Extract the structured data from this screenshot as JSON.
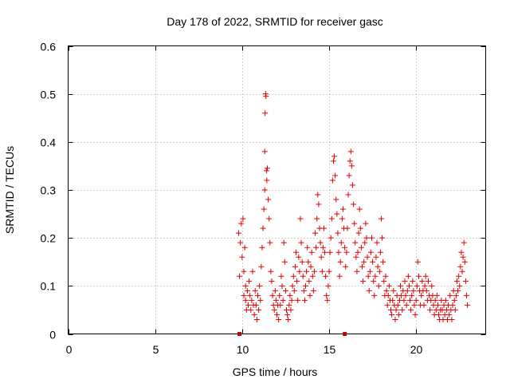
{
  "chart_data": {
    "type": "scatter",
    "title": "Day 178 of 2022, SRMTID for receiver gasc",
    "xlabel": "GPS time / hours",
    "ylabel": "SRMTID / TECUs",
    "xlim": [
      0,
      24
    ],
    "ylim": [
      0,
      0.6
    ],
    "xticks": [
      0,
      5,
      10,
      15,
      20
    ],
    "yticks": [
      0,
      0.1,
      0.2,
      0.3,
      0.4,
      0.5,
      0.6
    ],
    "xtick_labels": [
      "0",
      "5",
      "10",
      "15",
      "20"
    ],
    "ytick_labels": [
      "0",
      "0.1",
      "0.2",
      "0.3",
      "0.4",
      "0.5",
      "0.6"
    ],
    "grid": true,
    "marker": "+",
    "color": "#e00000",
    "series": [
      {
        "name": "SRMTID",
        "points": [
          [
            9.8,
            0.21
          ],
          [
            9.85,
            0.12
          ],
          [
            9.9,
            0.19
          ],
          [
            9.95,
            0.23
          ],
          [
            10.0,
            0.16
          ],
          [
            10.05,
            0.24
          ],
          [
            10.1,
            0.13
          ],
          [
            10.1,
            0.08
          ],
          [
            10.15,
            0.18
          ],
          [
            10.2,
            0.07
          ],
          [
            10.2,
            0.1
          ],
          [
            10.25,
            0.05
          ],
          [
            10.3,
            0.09
          ],
          [
            10.35,
            0.06
          ],
          [
            10.4,
            0.11
          ],
          [
            10.45,
            0.08
          ],
          [
            10.5,
            0.05
          ],
          [
            10.55,
            0.07
          ],
          [
            10.6,
            0.13
          ],
          [
            10.65,
            0.06
          ],
          [
            10.7,
            0.04
          ],
          [
            10.75,
            0.09
          ],
          [
            10.8,
            0.06
          ],
          [
            10.85,
            0.03
          ],
          [
            10.9,
            0.08
          ],
          [
            10.95,
            0.05
          ],
          [
            11.0,
            0.1
          ],
          [
            11.05,
            0.07
          ],
          [
            11.1,
            0.14
          ],
          [
            11.15,
            0.18
          ],
          [
            11.2,
            0.22
          ],
          [
            11.25,
            0.26
          ],
          [
            11.3,
            0.3
          ],
          [
            11.3,
            0.38
          ],
          [
            11.32,
            0.46
          ],
          [
            11.35,
            0.5
          ],
          [
            11.37,
            0.495
          ],
          [
            11.4,
            0.34
          ],
          [
            11.42,
            0.32
          ],
          [
            11.45,
            0.345
          ],
          [
            11.5,
            0.28
          ],
          [
            11.55,
            0.24
          ],
          [
            11.6,
            0.19
          ],
          [
            11.65,
            0.13
          ],
          [
            11.7,
            0.11
          ],
          [
            11.75,
            0.08
          ],
          [
            11.8,
            0.06
          ],
          [
            11.85,
            0.05
          ],
          [
            11.9,
            0.09
          ],
          [
            11.95,
            0.07
          ],
          [
            12.0,
            0.04
          ],
          [
            12.05,
            0.06
          ],
          [
            12.1,
            0.03
          ],
          [
            12.15,
            0.08
          ],
          [
            12.2,
            0.06
          ],
          [
            12.25,
            0.12
          ],
          [
            12.3,
            0.1
          ],
          [
            12.35,
            0.07
          ],
          [
            12.4,
            0.19
          ],
          [
            12.45,
            0.15
          ],
          [
            12.5,
            0.09
          ],
          [
            12.55,
            0.05
          ],
          [
            12.6,
            0.04
          ],
          [
            12.65,
            0.03
          ],
          [
            12.7,
            0.06
          ],
          [
            12.75,
            0.08
          ],
          [
            12.8,
            0.05
          ],
          [
            12.85,
            0.07
          ],
          [
            12.9,
            0.1
          ],
          [
            12.95,
            0.12
          ],
          [
            13.0,
            0.09
          ],
          [
            13.05,
            0.14
          ],
          [
            13.1,
            0.17
          ],
          [
            13.15,
            0.11
          ],
          [
            13.2,
            0.07
          ],
          [
            13.25,
            0.16
          ],
          [
            13.3,
            0.13
          ],
          [
            13.35,
            0.24
          ],
          [
            13.4,
            0.19
          ],
          [
            13.45,
            0.15
          ],
          [
            13.5,
            0.12
          ],
          [
            13.55,
            0.09
          ],
          [
            13.6,
            0.07
          ],
          [
            13.65,
            0.1
          ],
          [
            13.7,
            0.13
          ],
          [
            13.75,
            0.18
          ],
          [
            13.8,
            0.15
          ],
          [
            13.85,
            0.11
          ],
          [
            13.9,
            0.08
          ],
          [
            13.95,
            0.14
          ],
          [
            14.0,
            0.17
          ],
          [
            14.05,
            0.12
          ],
          [
            14.1,
            0.09
          ],
          [
            14.15,
            0.13
          ],
          [
            14.2,
            0.21
          ],
          [
            14.25,
            0.18
          ],
          [
            14.3,
            0.24
          ],
          [
            14.35,
            0.29
          ],
          [
            14.4,
            0.27
          ],
          [
            14.45,
            0.22
          ],
          [
            14.5,
            0.19
          ],
          [
            14.55,
            0.16
          ],
          [
            14.6,
            0.13
          ],
          [
            14.65,
            0.18
          ],
          [
            14.7,
            0.22
          ],
          [
            14.75,
            0.17
          ],
          [
            14.8,
            0.12
          ],
          [
            14.85,
            0.08
          ],
          [
            14.9,
            0.07
          ],
          [
            14.95,
            0.1
          ],
          [
            15.0,
            0.13
          ],
          [
            15.05,
            0.17
          ],
          [
            15.1,
            0.2
          ],
          [
            15.15,
            0.24
          ],
          [
            15.2,
            0.32
          ],
          [
            15.25,
            0.36
          ],
          [
            15.3,
            0.37
          ],
          [
            15.35,
            0.33
          ],
          [
            15.4,
            0.28
          ],
          [
            15.45,
            0.25
          ],
          [
            15.5,
            0.21
          ],
          [
            15.55,
            0.17
          ],
          [
            15.6,
            0.12
          ],
          [
            15.65,
            0.15
          ],
          [
            15.7,
            0.19
          ],
          [
            15.75,
            0.24
          ],
          [
            15.8,
            0.26
          ],
          [
            15.85,
            0.22
          ],
          [
            15.9,
            0.18
          ],
          [
            15.95,
            0.14
          ],
          [
            16.0,
            0.17
          ],
          [
            16.05,
            0.22
          ],
          [
            16.1,
            0.29
          ],
          [
            16.15,
            0.33
          ],
          [
            16.2,
            0.36
          ],
          [
            16.25,
            0.38
          ],
          [
            16.3,
            0.35
          ],
          [
            16.35,
            0.31
          ],
          [
            16.4,
            0.27
          ],
          [
            16.45,
            0.23
          ],
          [
            16.5,
            0.19
          ],
          [
            16.55,
            0.16
          ],
          [
            16.6,
            0.13
          ],
          [
            16.65,
            0.17
          ],
          [
            16.7,
            0.21
          ],
          [
            16.75,
            0.26
          ],
          [
            16.8,
            0.22
          ],
          [
            16.85,
            0.18
          ],
          [
            16.9,
            0.14
          ],
          [
            16.95,
            0.11
          ],
          [
            17.0,
            0.15
          ],
          [
            17.05,
            0.19
          ],
          [
            17.1,
            0.23
          ],
          [
            17.15,
            0.2
          ],
          [
            17.2,
            0.16
          ],
          [
            17.25,
            0.12
          ],
          [
            17.3,
            0.09
          ],
          [
            17.35,
            0.13
          ],
          [
            17.4,
            0.17
          ],
          [
            17.45,
            0.2
          ],
          [
            17.5,
            0.15
          ],
          [
            17.55,
            0.11
          ],
          [
            17.6,
            0.08
          ],
          [
            17.65,
            0.12
          ],
          [
            17.7,
            0.16
          ],
          [
            17.75,
            0.19
          ],
          [
            17.8,
            0.14
          ],
          [
            17.85,
            0.1
          ],
          [
            17.9,
            0.13
          ],
          [
            17.95,
            0.17
          ],
          [
            18.0,
            0.24
          ],
          [
            18.05,
            0.2
          ],
          [
            18.1,
            0.15
          ],
          [
            18.15,
            0.11
          ],
          [
            18.2,
            0.08
          ],
          [
            18.25,
            0.12
          ],
          [
            18.3,
            0.09
          ],
          [
            18.35,
            0.06
          ],
          [
            18.4,
            0.08
          ],
          [
            18.45,
            0.1
          ],
          [
            18.5,
            0.07
          ],
          [
            18.55,
            0.05
          ],
          [
            18.6,
            0.04
          ],
          [
            18.65,
            0.07
          ],
          [
            18.7,
            0.09
          ],
          [
            18.75,
            0.06
          ],
          [
            18.8,
            0.03
          ],
          [
            18.85,
            0.05
          ],
          [
            18.9,
            0.08
          ],
          [
            18.95,
            0.06
          ],
          [
            19.0,
            0.04
          ],
          [
            19.05,
            0.07
          ],
          [
            19.1,
            0.1
          ],
          [
            19.15,
            0.08
          ],
          [
            19.2,
            0.05
          ],
          [
            19.25,
            0.09
          ],
          [
            19.3,
            0.07
          ],
          [
            19.35,
            0.11
          ],
          [
            19.4,
            0.08
          ],
          [
            19.45,
            0.06
          ],
          [
            19.5,
            0.09
          ],
          [
            19.55,
            0.12
          ],
          [
            19.6,
            0.1
          ],
          [
            19.65,
            0.07
          ],
          [
            19.7,
            0.05
          ],
          [
            19.75,
            0.08
          ],
          [
            19.8,
            0.11
          ],
          [
            19.85,
            0.09
          ],
          [
            19.9,
            0.06
          ],
          [
            19.95,
            0.04
          ],
          [
            20.0,
            0.07
          ],
          [
            20.05,
            0.1
          ],
          [
            20.1,
            0.15
          ],
          [
            20.15,
            0.12
          ],
          [
            20.2,
            0.09
          ],
          [
            20.25,
            0.06
          ],
          [
            20.3,
            0.08
          ],
          [
            20.35,
            0.11
          ],
          [
            20.4,
            0.09
          ],
          [
            20.45,
            0.06
          ],
          [
            20.5,
            0.1
          ],
          [
            20.55,
            0.12
          ],
          [
            20.6,
            0.09
          ],
          [
            20.65,
            0.07
          ],
          [
            20.7,
            0.11
          ],
          [
            20.75,
            0.08
          ],
          [
            20.8,
            0.05
          ],
          [
            20.85,
            0.07
          ],
          [
            20.9,
            0.1
          ],
          [
            20.95,
            0.08
          ],
          [
            21.0,
            0.06
          ],
          [
            21.05,
            0.04
          ],
          [
            21.1,
            0.07
          ],
          [
            21.15,
            0.05
          ],
          [
            21.2,
            0.08
          ],
          [
            21.25,
            0.06
          ],
          [
            21.3,
            0.04
          ],
          [
            21.35,
            0.03
          ],
          [
            21.4,
            0.05
          ],
          [
            21.45,
            0.07
          ],
          [
            21.5,
            0.05
          ],
          [
            21.55,
            0.03
          ],
          [
            21.6,
            0.06
          ],
          [
            21.65,
            0.04
          ],
          [
            21.7,
            0.07
          ],
          [
            21.75,
            0.05
          ],
          [
            21.8,
            0.03
          ],
          [
            21.85,
            0.06
          ],
          [
            21.9,
            0.04
          ],
          [
            21.95,
            0.08
          ],
          [
            22.0,
            0.05
          ],
          [
            22.05,
            0.03
          ],
          [
            22.1,
            0.06
          ],
          [
            22.15,
            0.09
          ],
          [
            22.2,
            0.07
          ],
          [
            22.25,
            0.05
          ],
          [
            22.3,
            0.08
          ],
          [
            22.35,
            0.11
          ],
          [
            22.4,
            0.09
          ],
          [
            22.45,
            0.12
          ],
          [
            22.5,
            0.1
          ],
          [
            22.55,
            0.14
          ],
          [
            22.6,
            0.17
          ],
          [
            22.65,
            0.13
          ],
          [
            22.7,
            0.16
          ],
          [
            22.75,
            0.19
          ],
          [
            22.8,
            0.15
          ],
          [
            22.85,
            0.11
          ],
          [
            22.9,
            0.08
          ],
          [
            22.95,
            0.06
          ]
        ]
      }
    ],
    "markers_on_axis": [
      9.85,
      15.9
    ]
  }
}
